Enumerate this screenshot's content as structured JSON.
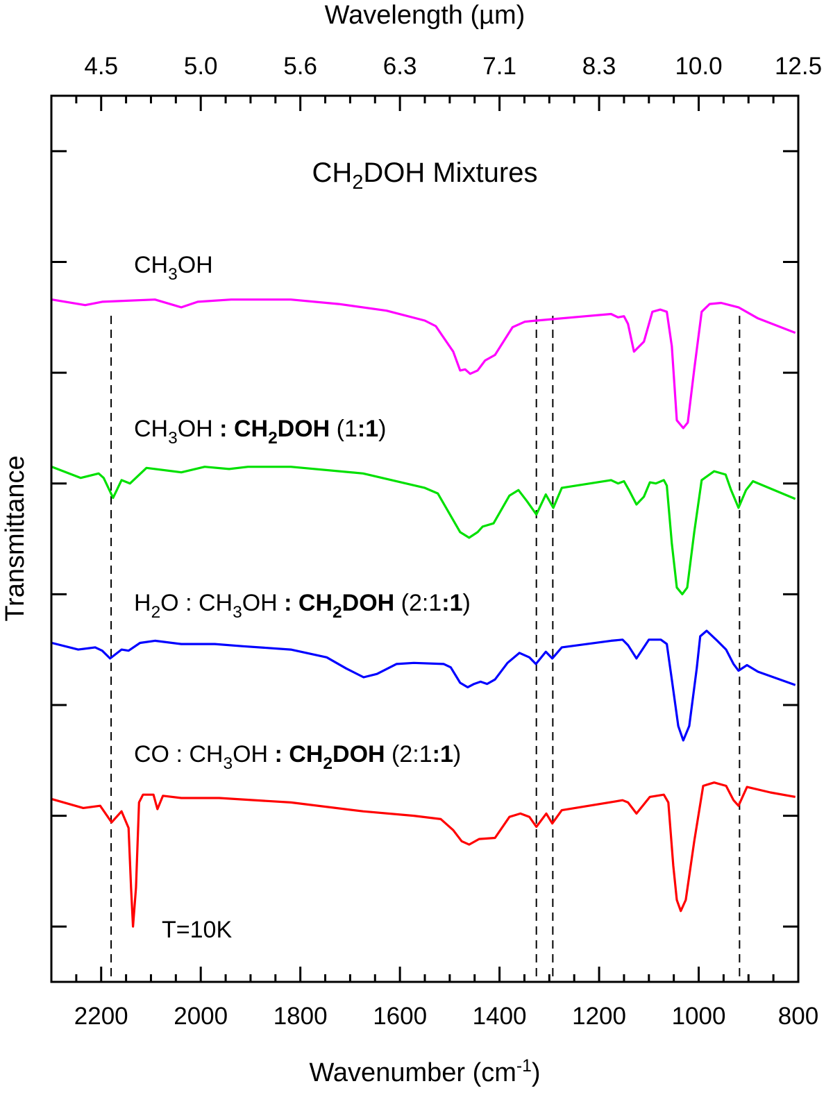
{
  "chart_data": {
    "type": "line",
    "title_segments": [
      {
        "text": "CH",
        "style": "n"
      },
      {
        "text": "2",
        "style": "sub"
      },
      {
        "text": "DOH Mixtures",
        "style": "n"
      }
    ],
    "xlabel_segments": [
      {
        "text": "Wavenumber (cm",
        "style": "n"
      },
      {
        "text": "-1",
        "style": "sup"
      },
      {
        "text": ")",
        "style": "n"
      }
    ],
    "x2label": "Wavelength (µm)",
    "ylabel": "Transmittance",
    "xlim": [
      2300,
      800
    ],
    "ylim": [
      0,
      8
    ],
    "x_reversed": true,
    "xticks": [
      2200,
      2000,
      1800,
      1600,
      1400,
      1200,
      1000,
      800
    ],
    "xtick_labels": [
      "2200",
      "2000",
      "1800",
      "1600",
      "1400",
      "1200",
      "1000",
      "800"
    ],
    "x_minor_step": 50,
    "x2tick_labels": [
      "4.5",
      "5.0",
      "5.6",
      "6.3",
      "7.1",
      "8.3",
      "10.0",
      "12.5"
    ],
    "yticks": [
      0.5,
      1.5,
      2.5,
      3.5,
      4.5,
      5.5,
      6.5,
      7.5
    ],
    "ytick_labels_shown": false,
    "grid": false,
    "reference_lines": [
      2180,
      1326,
      1293,
      918
    ],
    "annotation": "T=10K",
    "series": [
      {
        "color": "#ff00ff",
        "label_segments": [
          {
            "text": "CH",
            "style": "n"
          },
          {
            "text": "3",
            "style": "sub"
          },
          {
            "text": "OH",
            "style": "n"
          }
        ],
        "points": [
          [
            2299,
            6.16
          ],
          [
            2232,
            6.11
          ],
          [
            2198,
            6.14
          ],
          [
            2092,
            6.16
          ],
          [
            2039,
            6.09
          ],
          [
            2006,
            6.14
          ],
          [
            1939,
            6.16
          ],
          [
            1819,
            6.16
          ],
          [
            1723,
            6.12
          ],
          [
            1627,
            6.06
          ],
          [
            1550,
            5.97
          ],
          [
            1528,
            5.92
          ],
          [
            1493,
            5.69
          ],
          [
            1479,
            5.52
          ],
          [
            1469,
            5.53
          ],
          [
            1459,
            5.49
          ],
          [
            1444,
            5.52
          ],
          [
            1429,
            5.61
          ],
          [
            1409,
            5.66
          ],
          [
            1374,
            5.91
          ],
          [
            1349,
            5.96
          ],
          [
            1326,
            5.97
          ],
          [
            1227,
            6.01
          ],
          [
            1176,
            6.03
          ],
          [
            1162,
            6.0
          ],
          [
            1150,
            6.01
          ],
          [
            1142,
            5.94
          ],
          [
            1130,
            5.69
          ],
          [
            1110,
            5.78
          ],
          [
            1093,
            6.05
          ],
          [
            1077,
            6.07
          ],
          [
            1064,
            6.05
          ],
          [
            1054,
            5.74
          ],
          [
            1044,
            5.07
          ],
          [
            1031,
            5.0
          ],
          [
            1022,
            5.05
          ],
          [
            1009,
            5.53
          ],
          [
            994,
            6.05
          ],
          [
            978,
            6.12
          ],
          [
            955,
            6.13
          ],
          [
            920,
            6.09
          ],
          [
            881,
            5.99
          ],
          [
            806,
            5.86
          ]
        ]
      },
      {
        "color": "#00e000",
        "label_segments": [
          {
            "text": "CH",
            "style": "n"
          },
          {
            "text": "3",
            "style": "sub"
          },
          {
            "text": "OH ",
            "style": "n"
          },
          {
            "text": ": CH",
            "style": "b"
          },
          {
            "text": "2",
            "style": "bsub"
          },
          {
            "text": "DOH",
            "style": "b"
          },
          {
            "text": " (1",
            "style": "n"
          },
          {
            "text": ":1",
            "style": "b"
          },
          {
            "text": ")",
            "style": "n"
          }
        ],
        "points": [
          [
            2299,
            4.65
          ],
          [
            2241,
            4.55
          ],
          [
            2205,
            4.59
          ],
          [
            2195,
            4.55
          ],
          [
            2176,
            4.37
          ],
          [
            2159,
            4.53
          ],
          [
            2142,
            4.5
          ],
          [
            2109,
            4.64
          ],
          [
            2039,
            4.6
          ],
          [
            1992,
            4.65
          ],
          [
            1943,
            4.63
          ],
          [
            1905,
            4.65
          ],
          [
            1819,
            4.65
          ],
          [
            1674,
            4.59
          ],
          [
            1550,
            4.46
          ],
          [
            1524,
            4.41
          ],
          [
            1479,
            4.06
          ],
          [
            1461,
            4.01
          ],
          [
            1444,
            4.06
          ],
          [
            1434,
            4.11
          ],
          [
            1412,
            4.14
          ],
          [
            1380,
            4.39
          ],
          [
            1362,
            4.44
          ],
          [
            1345,
            4.34
          ],
          [
            1326,
            4.22
          ],
          [
            1307,
            4.4
          ],
          [
            1292,
            4.28
          ],
          [
            1275,
            4.46
          ],
          [
            1176,
            4.53
          ],
          [
            1162,
            4.5
          ],
          [
            1150,
            4.52
          ],
          [
            1140,
            4.44
          ],
          [
            1125,
            4.31
          ],
          [
            1110,
            4.38
          ],
          [
            1098,
            4.51
          ],
          [
            1086,
            4.5
          ],
          [
            1070,
            4.53
          ],
          [
            1064,
            4.48
          ],
          [
            1054,
            3.96
          ],
          [
            1044,
            3.56
          ],
          [
            1033,
            3.5
          ],
          [
            1023,
            3.56
          ],
          [
            1009,
            4.06
          ],
          [
            994,
            4.53
          ],
          [
            969,
            4.61
          ],
          [
            946,
            4.58
          ],
          [
            935,
            4.44
          ],
          [
            920,
            4.28
          ],
          [
            905,
            4.44
          ],
          [
            891,
            4.52
          ],
          [
            806,
            4.36
          ]
        ]
      },
      {
        "color": "#0000ff",
        "label_segments": [
          {
            "text": "H",
            "style": "n"
          },
          {
            "text": "2",
            "style": "sub"
          },
          {
            "text": "O : CH",
            "style": "n"
          },
          {
            "text": "3",
            "style": "sub"
          },
          {
            "text": "OH ",
            "style": "n"
          },
          {
            "text": ": CH",
            "style": "b"
          },
          {
            "text": "2",
            "style": "bsub"
          },
          {
            "text": "DOH",
            "style": "b"
          },
          {
            "text": " (2:1",
            "style": "n"
          },
          {
            "text": ":1",
            "style": "b"
          },
          {
            "text": ")",
            "style": "n"
          }
        ],
        "points": [
          [
            2299,
            3.06
          ],
          [
            2246,
            3.0
          ],
          [
            2212,
            3.02
          ],
          [
            2198,
            2.99
          ],
          [
            2182,
            2.92
          ],
          [
            2159,
            3.0
          ],
          [
            2145,
            2.99
          ],
          [
            2122,
            3.06
          ],
          [
            2092,
            3.08
          ],
          [
            2039,
            3.05
          ],
          [
            1972,
            3.05
          ],
          [
            1915,
            3.03
          ],
          [
            1819,
            3.0
          ],
          [
            1747,
            2.93
          ],
          [
            1708,
            2.83
          ],
          [
            1673,
            2.75
          ],
          [
            1646,
            2.78
          ],
          [
            1607,
            2.87
          ],
          [
            1572,
            2.88
          ],
          [
            1512,
            2.87
          ],
          [
            1498,
            2.84
          ],
          [
            1479,
            2.7
          ],
          [
            1464,
            2.66
          ],
          [
            1451,
            2.69
          ],
          [
            1438,
            2.71
          ],
          [
            1425,
            2.69
          ],
          [
            1409,
            2.73
          ],
          [
            1384,
            2.88
          ],
          [
            1360,
            2.97
          ],
          [
            1340,
            2.93
          ],
          [
            1327,
            2.87
          ],
          [
            1307,
            2.98
          ],
          [
            1294,
            2.92
          ],
          [
            1275,
            3.02
          ],
          [
            1176,
            3.08
          ],
          [
            1153,
            3.09
          ],
          [
            1142,
            3.04
          ],
          [
            1125,
            2.92
          ],
          [
            1100,
            3.09
          ],
          [
            1076,
            3.09
          ],
          [
            1064,
            3.05
          ],
          [
            1054,
            2.73
          ],
          [
            1041,
            2.31
          ],
          [
            1031,
            2.18
          ],
          [
            1019,
            2.31
          ],
          [
            1004,
            2.83
          ],
          [
            997,
            3.12
          ],
          [
            984,
            3.17
          ],
          [
            965,
            3.09
          ],
          [
            945,
            3.0
          ],
          [
            930,
            2.87
          ],
          [
            920,
            2.81
          ],
          [
            903,
            2.86
          ],
          [
            881,
            2.8
          ],
          [
            806,
            2.68
          ]
        ]
      },
      {
        "color": "#ff0000",
        "label_segments": [
          {
            "text": "CO : CH",
            "style": "n"
          },
          {
            "text": "3",
            "style": "sub"
          },
          {
            "text": "OH ",
            "style": "n"
          },
          {
            "text": ": CH",
            "style": "b"
          },
          {
            "text": "2",
            "style": "bsub"
          },
          {
            "text": "DOH",
            "style": "b"
          },
          {
            "text": " (2:1",
            "style": "n"
          },
          {
            "text": ":1",
            "style": "b"
          },
          {
            "text": ")",
            "style": "n"
          }
        ],
        "points": [
          [
            2299,
            1.65
          ],
          [
            2236,
            1.57
          ],
          [
            2202,
            1.59
          ],
          [
            2179,
            1.44
          ],
          [
            2159,
            1.54
          ],
          [
            2145,
            1.39
          ],
          [
            2140,
            0.85
          ],
          [
            2136,
            0.5
          ],
          [
            2130,
            0.85
          ],
          [
            2124,
            1.62
          ],
          [
            2116,
            1.69
          ],
          [
            2095,
            1.69
          ],
          [
            2087,
            1.56
          ],
          [
            2076,
            1.68
          ],
          [
            2039,
            1.66
          ],
          [
            1963,
            1.66
          ],
          [
            1819,
            1.62
          ],
          [
            1674,
            1.54
          ],
          [
            1572,
            1.5
          ],
          [
            1518,
            1.47
          ],
          [
            1493,
            1.37
          ],
          [
            1476,
            1.27
          ],
          [
            1461,
            1.24
          ],
          [
            1441,
            1.29
          ],
          [
            1409,
            1.3
          ],
          [
            1380,
            1.49
          ],
          [
            1358,
            1.52
          ],
          [
            1340,
            1.49
          ],
          [
            1326,
            1.4
          ],
          [
            1306,
            1.52
          ],
          [
            1294,
            1.43
          ],
          [
            1275,
            1.55
          ],
          [
            1153,
            1.64
          ],
          [
            1142,
            1.62
          ],
          [
            1125,
            1.52
          ],
          [
            1098,
            1.67
          ],
          [
            1070,
            1.69
          ],
          [
            1061,
            1.62
          ],
          [
            1051,
            1.05
          ],
          [
            1044,
            0.74
          ],
          [
            1036,
            0.64
          ],
          [
            1026,
            0.74
          ],
          [
            1009,
            1.27
          ],
          [
            991,
            1.77
          ],
          [
            969,
            1.8
          ],
          [
            945,
            1.77
          ],
          [
            930,
            1.64
          ],
          [
            920,
            1.59
          ],
          [
            903,
            1.76
          ],
          [
            856,
            1.71
          ],
          [
            806,
            1.67
          ]
        ]
      }
    ]
  }
}
